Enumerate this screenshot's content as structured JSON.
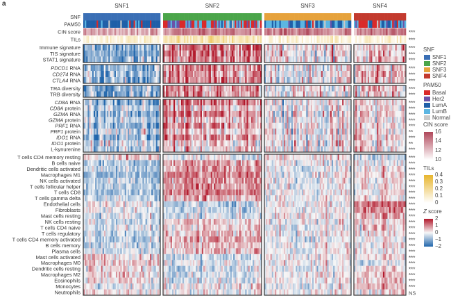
{
  "panel_label": "a",
  "chart_data": {
    "type": "heatmap",
    "title": "",
    "column_groups": [
      {
        "name": "SNF1",
        "color": "#3a6fb5"
      },
      {
        "name": "SNF2",
        "color": "#4ba54a"
      },
      {
        "name": "SNF3",
        "color": "#e6a23c"
      },
      {
        "name": "SNF4",
        "color": "#c33a2e"
      }
    ],
    "annotation_rows": [
      {
        "label": "SNF",
        "sig": ""
      },
      {
        "label": "PAM50",
        "sig": ""
      },
      {
        "label": "CIN score",
        "sig": "***"
      },
      {
        "label": "TILs",
        "sig": "***"
      }
    ],
    "blocks": [
      {
        "rows": [
          {
            "label": "Immune signature",
            "sig": "***",
            "mean_z_by_cluster": [
              -0.8,
              0.9,
              0.1,
              0.3
            ]
          },
          {
            "label": "TIS signature",
            "sig": "***",
            "mean_z_by_cluster": [
              -0.8,
              0.9,
              0.1,
              0.3
            ]
          },
          {
            "label": "STAT1 signature",
            "sig": "***",
            "mean_z_by_cluster": [
              -0.7,
              0.8,
              0.1,
              0.4
            ]
          }
        ]
      },
      {
        "rows": [
          {
            "gene": "PDCD1",
            "suffix": " RNA",
            "sig": "***",
            "mean_z_by_cluster": [
              -0.7,
              0.8,
              0.0,
              0.3
            ]
          },
          {
            "gene": "CD274",
            "suffix": " RNA",
            "sig": "***",
            "mean_z_by_cluster": [
              -0.6,
              0.8,
              0.0,
              0.4
            ]
          },
          {
            "gene": "CTLA4",
            "suffix": " RNA",
            "sig": "***",
            "mean_z_by_cluster": [
              -0.7,
              0.8,
              0.0,
              0.3
            ]
          }
        ]
      },
      {
        "rows": [
          {
            "label": "TRA diversity",
            "sig": "***",
            "mean_z_by_cluster": [
              -0.6,
              0.7,
              0.0,
              0.3
            ]
          },
          {
            "label": "TRB diversity",
            "sig": "***",
            "mean_z_by_cluster": [
              -0.6,
              0.7,
              0.0,
              0.3
            ]
          }
        ]
      },
      {
        "rows": [
          {
            "gene": "CD8A",
            "suffix": " RNA",
            "sig": "***",
            "mean_z_by_cluster": [
              -0.6,
              0.8,
              0.0,
              0.3
            ]
          },
          {
            "gene": "CD8A",
            "suffix": " protein",
            "sig": "***",
            "mean_z_by_cluster": [
              -0.3,
              0.4,
              0.0,
              0.2
            ]
          },
          {
            "gene": "GZMA",
            "suffix": " RNA",
            "sig": "***",
            "mean_z_by_cluster": [
              -0.6,
              0.8,
              0.0,
              0.3
            ]
          },
          {
            "gene": "GZMA",
            "suffix": " protein",
            "sig": "***",
            "mean_z_by_cluster": [
              -0.3,
              0.4,
              0.0,
              0.2
            ]
          },
          {
            "gene": "PRF1",
            "suffix": " RNA",
            "sig": "***",
            "mean_z_by_cluster": [
              -0.6,
              0.7,
              0.0,
              0.3
            ]
          },
          {
            "gene": "PRF1",
            "suffix": " protein",
            "sig": "**",
            "mean_z_by_cluster": [
              -0.2,
              0.3,
              0.0,
              0.1
            ]
          },
          {
            "gene": "IDO1",
            "suffix": " RNA",
            "sig": "***",
            "mean_z_by_cluster": [
              -0.6,
              0.7,
              0.0,
              0.3
            ]
          },
          {
            "gene": "IDO1",
            "suffix": " protein",
            "sig": "**",
            "mean_z_by_cluster": [
              -0.2,
              0.3,
              0.0,
              0.1
            ]
          },
          {
            "label": "L-kynurenine",
            "sig": "***",
            "mean_z_by_cluster": [
              -0.3,
              0.3,
              0.0,
              0.3
            ]
          }
        ]
      },
      {
        "rows": [
          {
            "label": "T cells CD4 memory resting",
            "sig": "***",
            "mean_z_by_cluster": [
              0.2,
              -0.1,
              0.2,
              -0.3
            ]
          },
          {
            "label": "B cells naive",
            "sig": "***",
            "mean_z_by_cluster": [
              -0.5,
              0.6,
              0.0,
              0.0
            ]
          },
          {
            "label": "Dendritic cells activated",
            "sig": "***",
            "mean_z_by_cluster": [
              -0.5,
              0.6,
              0.0,
              0.1
            ]
          },
          {
            "label": "Macrophages M1",
            "sig": "***",
            "mean_z_by_cluster": [
              -0.6,
              0.8,
              0.0,
              0.2
            ]
          },
          {
            "label": "NK cells activated",
            "sig": "***",
            "mean_z_by_cluster": [
              -0.5,
              0.6,
              0.0,
              0.1
            ]
          },
          {
            "label": "T cells follicular helper",
            "sig": "***",
            "mean_z_by_cluster": [
              -0.5,
              0.7,
              0.0,
              0.1
            ]
          },
          {
            "label": "T cells CD8",
            "sig": "***",
            "mean_z_by_cluster": [
              -0.6,
              0.8,
              0.0,
              0.1
            ]
          },
          {
            "label": "T cells gamma delta",
            "sig": "***",
            "mean_z_by_cluster": [
              -0.4,
              0.5,
              0.0,
              0.1
            ]
          },
          {
            "label": "Endothelial cells",
            "sig": "***",
            "mean_z_by_cluster": [
              0.1,
              -0.4,
              0.0,
              0.9
            ]
          },
          {
            "label": "Fibroblasts",
            "sig": "***",
            "mean_z_by_cluster": [
              0.0,
              -0.4,
              0.0,
              0.8
            ]
          },
          {
            "label": "Mast cells resting",
            "sig": "***",
            "mean_z_by_cluster": [
              -0.2,
              -0.2,
              0.1,
              0.5
            ]
          },
          {
            "label": "NK cells resting",
            "sig": "***",
            "mean_z_by_cluster": [
              -0.3,
              0.3,
              0.0,
              0.2
            ]
          },
          {
            "label": "T cells CD4 naive",
            "sig": "***",
            "mean_z_by_cluster": [
              -0.2,
              0.2,
              -0.1,
              0.3
            ]
          },
          {
            "label": "T cells regulatory",
            "sig": "***",
            "mean_z_by_cluster": [
              -0.4,
              0.4,
              0.0,
              0.2
            ]
          },
          {
            "label": "T cells CD4 memory activated",
            "sig": "***",
            "mean_z_by_cluster": [
              -0.4,
              0.5,
              -0.1,
              0.1
            ]
          },
          {
            "label": "B cells memory",
            "sig": "***",
            "mean_z_by_cluster": [
              -0.4,
              0.4,
              0.0,
              0.1
            ]
          },
          {
            "label": "Plasma cells",
            "sig": "***",
            "mean_z_by_cluster": [
              -0.3,
              0.4,
              0.0,
              0.0
            ]
          },
          {
            "label": "Mast cells activated",
            "sig": "***",
            "mean_z_by_cluster": [
              0.2,
              -0.3,
              0.1,
              0.2
            ]
          },
          {
            "label": "Macrophages M0",
            "sig": "***",
            "mean_z_by_cluster": [
              0.3,
              -0.1,
              0.0,
              -0.2
            ]
          },
          {
            "label": "Dendritic cells resting",
            "sig": "***",
            "mean_z_by_cluster": [
              0.1,
              -0.2,
              0.0,
              0.2
            ]
          },
          {
            "label": "Macrophages M2",
            "sig": "***",
            "mean_z_by_cluster": [
              0.2,
              -0.3,
              0.0,
              0.3
            ]
          },
          {
            "label": "Eosinophils",
            "sig": "***",
            "mean_z_by_cluster": [
              0.1,
              -0.2,
              0.0,
              0.3
            ]
          },
          {
            "label": "Monocytes",
            "sig": "***",
            "mean_z_by_cluster": [
              -0.1,
              0.1,
              -0.1,
              0.5
            ]
          },
          {
            "label": "Neutrophils",
            "sig": "NS",
            "mean_z_by_cluster": [
              0.1,
              0.0,
              0.0,
              0.2
            ]
          }
        ]
      }
    ],
    "legends": {
      "snf": {
        "title": "SNF",
        "items": [
          {
            "label": "SNF1",
            "color": "#3a6fb5"
          },
          {
            "label": "SNF2",
            "color": "#4ba54a"
          },
          {
            "label": "SNF3",
            "color": "#e6a23c"
          },
          {
            "label": "SNF4",
            "color": "#c33a2e"
          }
        ]
      },
      "pam50": {
        "title": "PAM50",
        "items": [
          {
            "label": "Basal",
            "color": "#d92a2a"
          },
          {
            "label": "Her2",
            "color": "#6a52a8"
          },
          {
            "label": "LumA",
            "color": "#1f5fa8"
          },
          {
            "label": "LumB",
            "color": "#5cb6e2"
          },
          {
            "label": "Normal",
            "color": "#c9c9c9"
          }
        ]
      },
      "cin": {
        "title": "CIN score",
        "ticks": [
          "16",
          "14",
          "12",
          "10"
        ],
        "range": [
          10,
          16
        ],
        "colors": [
          "#ffffff",
          "#b0475a"
        ]
      },
      "tils": {
        "title": "TILs",
        "ticks": [
          "0.4",
          "0.3",
          "0.2",
          "0.1",
          "0"
        ],
        "range": [
          0,
          0.4
        ],
        "colors": [
          "#ffffff",
          "#e7b52d"
        ]
      },
      "z": {
        "title_italic": "Z",
        "title_rest": " score",
        "ticks": [
          "2",
          "1",
          "0",
          "−1",
          "−2"
        ],
        "range": [
          -2,
          2
        ],
        "colors": [
          "#2166ac",
          "#f7f7f7",
          "#b2182b"
        ]
      }
    }
  }
}
